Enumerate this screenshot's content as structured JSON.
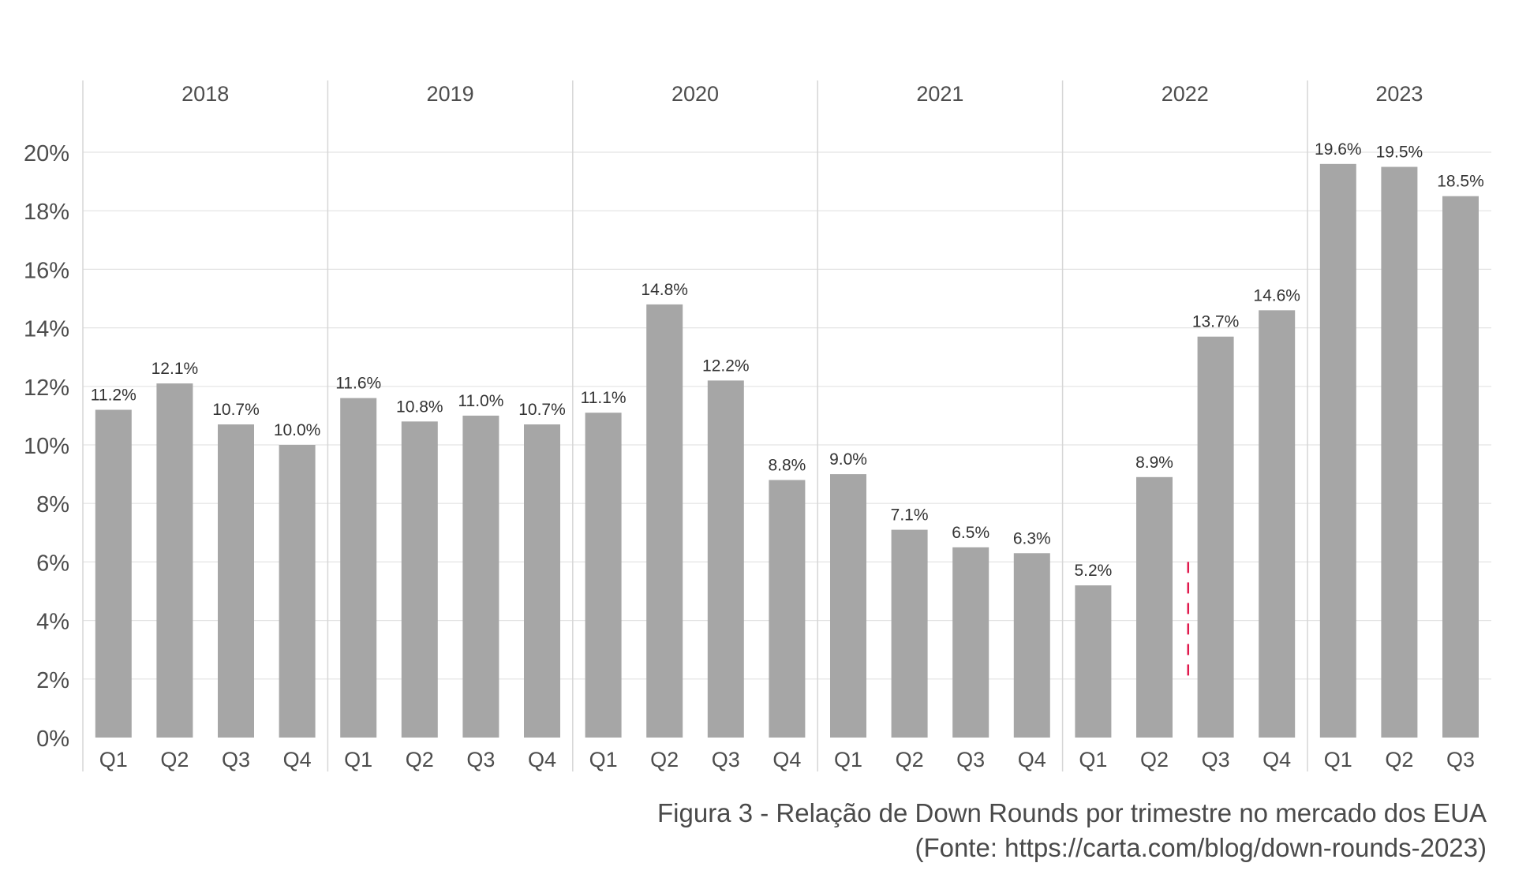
{
  "chart_data": {
    "type": "bar",
    "title": "",
    "xlabel": "",
    "ylabel": "",
    "ylim": [
      0,
      22
    ],
    "y_ticks": [
      "0%",
      "2%",
      "4%",
      "6%",
      "8%",
      "10%",
      "12%",
      "14%",
      "16%",
      "18%",
      "20%"
    ],
    "y_tick_values": [
      0,
      2,
      4,
      6,
      8,
      10,
      12,
      14,
      16,
      18,
      20
    ],
    "grid": true,
    "years": [
      {
        "label": "2018",
        "quarters": [
          "Q1",
          "Q2",
          "Q3",
          "Q4"
        ]
      },
      {
        "label": "2019",
        "quarters": [
          "Q1",
          "Q2",
          "Q3",
          "Q4"
        ]
      },
      {
        "label": "2020",
        "quarters": [
          "Q1",
          "Q2",
          "Q3",
          "Q4"
        ]
      },
      {
        "label": "2021",
        "quarters": [
          "Q1",
          "Q2",
          "Q3",
          "Q4"
        ]
      },
      {
        "label": "2022",
        "quarters": [
          "Q1",
          "Q2",
          "Q3",
          "Q4"
        ]
      },
      {
        "label": "2023",
        "quarters": [
          "Q1",
          "Q2",
          "Q3"
        ]
      }
    ],
    "values": [
      11.2,
      12.1,
      10.7,
      10.0,
      11.6,
      10.8,
      11.0,
      10.7,
      11.1,
      14.8,
      12.2,
      8.8,
      9.0,
      7.1,
      6.5,
      6.3,
      5.2,
      8.9,
      13.7,
      14.6,
      19.6,
      19.5,
      18.5
    ],
    "value_labels": [
      "11.2%",
      "12.1%",
      "10.7%",
      "10.0%",
      "11.6%",
      "10.8%",
      "11.0%",
      "10.7%",
      "11.1%",
      "14.8%",
      "12.2%",
      "8.8%",
      "9.0%",
      "7.1%",
      "6.5%",
      "6.3%",
      "5.2%",
      "8.9%",
      "13.7%",
      "14.6%",
      "19.6%",
      "19.5%",
      "18.5%"
    ],
    "annotation_dashed_line": {
      "between_bars": [
        17,
        18
      ],
      "y_from": 2,
      "y_to": 6,
      "color": "#e0194d"
    },
    "colors": {
      "bar": "#a6a6a6",
      "grid": "#e3e3e3",
      "separator": "#d6d6d6",
      "text": "#4d4d4d",
      "value_label": "#333333"
    }
  },
  "caption": {
    "line1": "Figura 3 - Relação de Down Rounds por trimestre no mercado dos EUA",
    "line2": "(Fonte: https://carta.com/blog/down-rounds-2023)"
  }
}
